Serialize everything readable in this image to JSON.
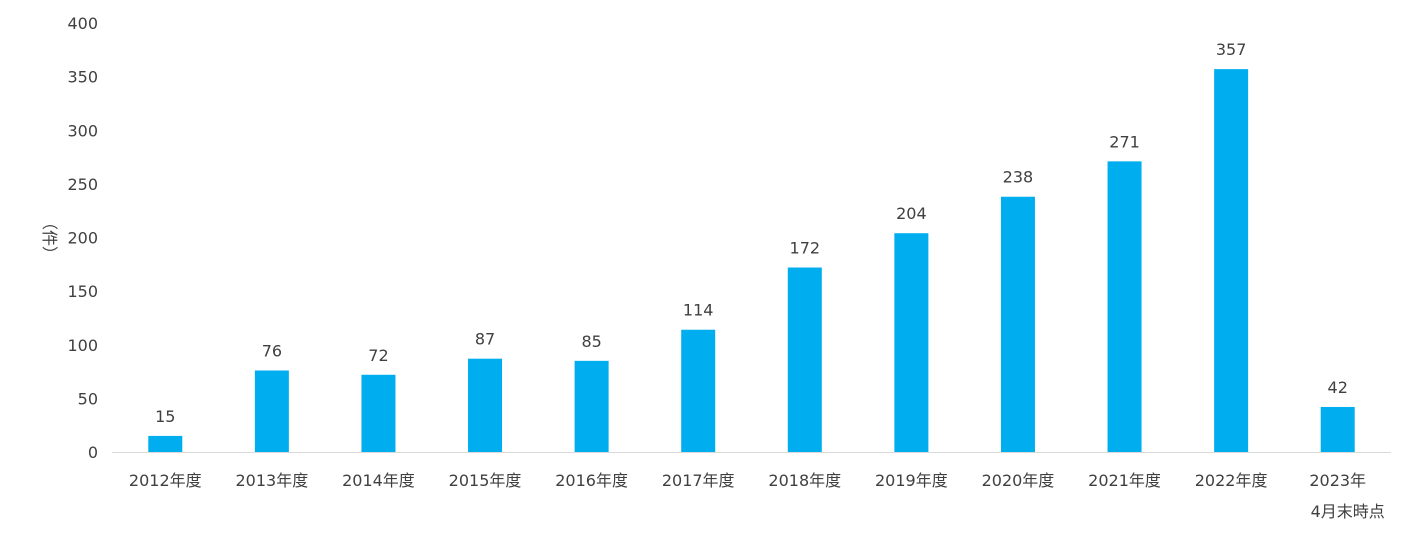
{
  "chart_data": {
    "type": "bar",
    "categories": [
      "2012年度",
      "2013年度",
      "2014年度",
      "2015年度",
      "2016年度",
      "2017年度",
      "2018年度",
      "2019年度",
      "2020年度",
      "2021年度",
      "2022年度",
      "2023年\n4月末時点"
    ],
    "values": [
      15,
      76,
      72,
      87,
      85,
      114,
      172,
      204,
      238,
      271,
      357,
      42
    ],
    "title": "",
    "xlabel": "",
    "ylabel": "（件）",
    "ylim": [
      0,
      400
    ],
    "yticks": [
      0,
      50,
      100,
      150,
      200,
      250,
      300,
      350,
      400
    ],
    "grid": false,
    "legend": "none",
    "bar_color": "#00AEEF",
    "axis_color": "#D9D9D9",
    "text_color": "#404040"
  }
}
